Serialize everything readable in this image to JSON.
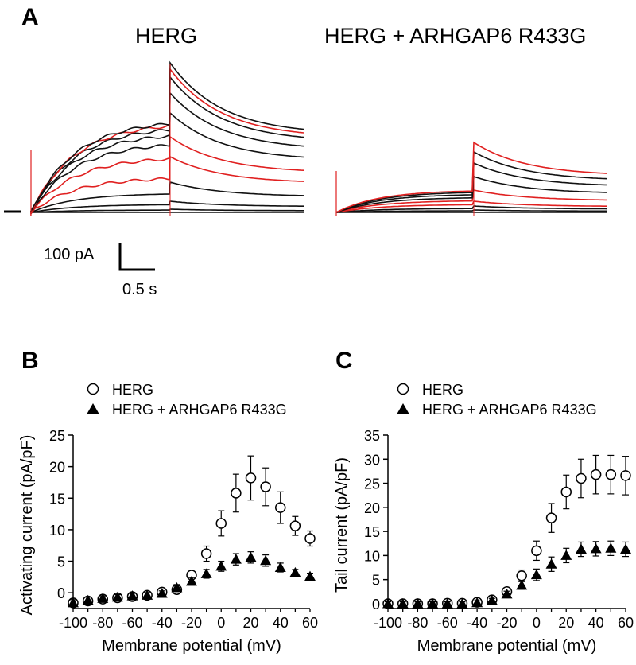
{
  "panel_a": {
    "letter": "A",
    "title_left": "HERG",
    "title_right": "HERG + ARHGAP6 R433G",
    "scale_current": "100 pA",
    "scale_time": "0.5 s"
  },
  "chart_data": [
    {
      "panel": "B",
      "type": "scatter",
      "xlabel": "Membrane potential (mV)",
      "ylabel": "Activating current (pA/pF)",
      "xlim": [
        -100,
        60
      ],
      "ylim": [
        -2.5,
        25
      ],
      "xticks": [
        "-100",
        "-80",
        "-60",
        "-40",
        "-20",
        "0",
        "20",
        "40",
        "60"
      ],
      "yticks": [
        "0",
        "5",
        "10",
        "15",
        "20",
        "25"
      ],
      "legend_position": "top-left",
      "x": [
        -100,
        -90,
        -80,
        -70,
        -60,
        -50,
        -40,
        -30,
        -20,
        -10,
        0,
        10,
        20,
        30,
        40,
        50,
        60
      ],
      "series": [
        {
          "name": "HERG",
          "marker": "open-circle",
          "values": [
            -1.6,
            -1.3,
            -1.0,
            -0.8,
            -0.6,
            -0.4,
            0.1,
            0.5,
            2.8,
            6.2,
            11.0,
            15.8,
            18.2,
            16.8,
            13.5,
            10.6,
            8.6
          ],
          "errors": [
            0.5,
            0.5,
            0.4,
            0.4,
            0.4,
            0.4,
            0.4,
            0.5,
            0.6,
            1.2,
            2.0,
            3.0,
            3.5,
            3.0,
            2.5,
            1.5,
            1.2
          ]
        },
        {
          "name": "HERG + ARHGAP6 R433G",
          "marker": "filled-triangle",
          "values": [
            -1.6,
            -1.2,
            -0.9,
            -0.7,
            -0.5,
            -0.4,
            -0.1,
            0.8,
            1.8,
            3.0,
            4.2,
            5.3,
            5.6,
            5.1,
            4.0,
            3.2,
            2.6
          ],
          "errors": [
            0.5,
            0.5,
            0.4,
            0.4,
            0.4,
            0.4,
            0.4,
            0.5,
            0.6,
            0.7,
            0.8,
            0.9,
            0.9,
            0.9,
            0.7,
            0.5,
            0.5
          ]
        }
      ]
    },
    {
      "panel": "C",
      "type": "scatter",
      "xlabel": "Membrane potential (mV)",
      "ylabel": "Tail current (pA/pF)",
      "xlim": [
        -100,
        60
      ],
      "ylim": [
        -1,
        35
      ],
      "xticks": [
        "-100",
        "-80",
        "-60",
        "-40",
        "-20",
        "0",
        "20",
        "40",
        "60"
      ],
      "yticks": [
        "0",
        "5",
        "10",
        "15",
        "20",
        "25",
        "30",
        "35"
      ],
      "legend_position": "top-left",
      "x": [
        -100,
        -90,
        -80,
        -70,
        -60,
        -50,
        -40,
        -30,
        -20,
        -10,
        0,
        10,
        20,
        30,
        40,
        50,
        60
      ],
      "series": [
        {
          "name": "HERG",
          "marker": "open-circle",
          "values": [
            0.0,
            0.0,
            0.0,
            0.0,
            0.1,
            0.1,
            0.3,
            0.8,
            2.5,
            5.8,
            11.0,
            17.8,
            23.2,
            26.0,
            26.8,
            26.8,
            26.6
          ],
          "errors": [
            0.4,
            0.4,
            0.4,
            0.4,
            0.4,
            0.4,
            0.4,
            0.5,
            0.8,
            1.2,
            2.0,
            3.0,
            3.5,
            4.0,
            4.0,
            4.0,
            4.0
          ]
        },
        {
          "name": "HERG + ARHGAP6 R433G",
          "marker": "filled-triangle",
          "values": [
            0.0,
            0.0,
            0.0,
            0.0,
            0.0,
            0.0,
            0.2,
            0.7,
            2.0,
            3.8,
            6.0,
            8.2,
            10.0,
            11.3,
            11.4,
            11.5,
            11.3
          ],
          "errors": [
            0.4,
            0.4,
            0.4,
            0.4,
            0.4,
            0.4,
            0.4,
            0.4,
            0.6,
            0.8,
            1.2,
            1.5,
            1.5,
            1.5,
            1.5,
            1.5,
            1.5
          ]
        }
      ]
    }
  ]
}
